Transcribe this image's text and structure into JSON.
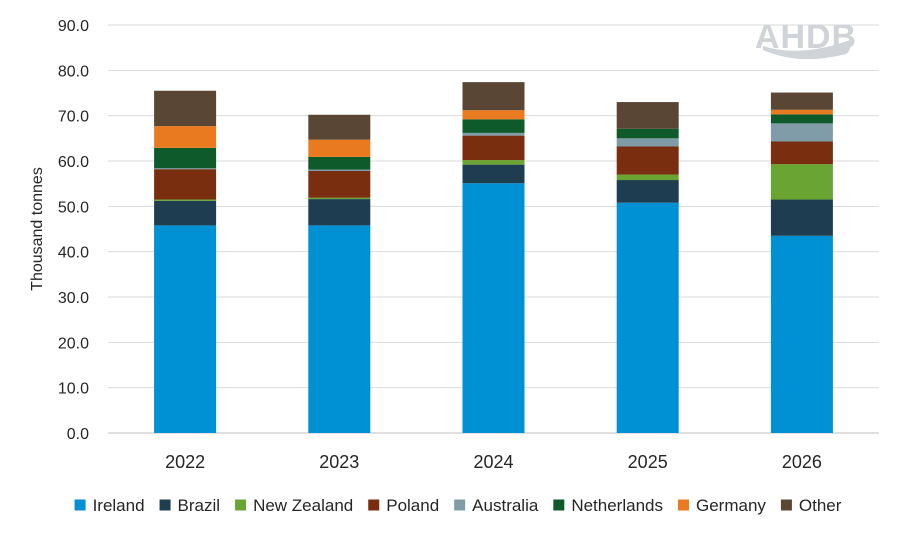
{
  "logo": {
    "text": "AHDB"
  },
  "chart_data": {
    "type": "bar",
    "stacked": true,
    "title": "",
    "xlabel": "",
    "ylabel": "Thousand tonnes",
    "ylim": [
      0,
      90
    ],
    "yticks": [
      "0.0",
      "10.0",
      "20.0",
      "30.0",
      "40.0",
      "50.0",
      "60.0",
      "70.0",
      "80.0",
      "90.0"
    ],
    "grid": true,
    "legend_position": "bottom",
    "categories": [
      "2022",
      "2023",
      "2024",
      "2025",
      "2026"
    ],
    "series": [
      {
        "name": "Ireland",
        "color": "#0090d4",
        "values": [
          45.8,
          45.8,
          55.1,
          50.8,
          43.5
        ]
      },
      {
        "name": "Brazil",
        "color": "#1f3d51",
        "values": [
          5.4,
          5.8,
          4.1,
          5.0,
          8.0
        ]
      },
      {
        "name": "New Zealand",
        "color": "#6aa533",
        "values": [
          0.3,
          0.3,
          1.0,
          1.2,
          7.8
        ]
      },
      {
        "name": "Poland",
        "color": "#7a2e10",
        "values": [
          6.7,
          5.9,
          5.4,
          6.2,
          5.0
        ]
      },
      {
        "name": "Australia",
        "color": "#7f9ca8",
        "values": [
          0.2,
          0.3,
          0.6,
          1.8,
          4.0
        ]
      },
      {
        "name": "Netherlands",
        "color": "#0f5a2a",
        "values": [
          4.5,
          2.8,
          3.0,
          2.1,
          2.0
        ]
      },
      {
        "name": "Germany",
        "color": "#ea7a1f",
        "values": [
          4.8,
          3.8,
          2.0,
          0.0,
          1.0
        ]
      },
      {
        "name": "Other",
        "color": "#5a4634",
        "values": [
          7.8,
          5.5,
          6.2,
          5.9,
          3.8
        ]
      }
    ]
  }
}
